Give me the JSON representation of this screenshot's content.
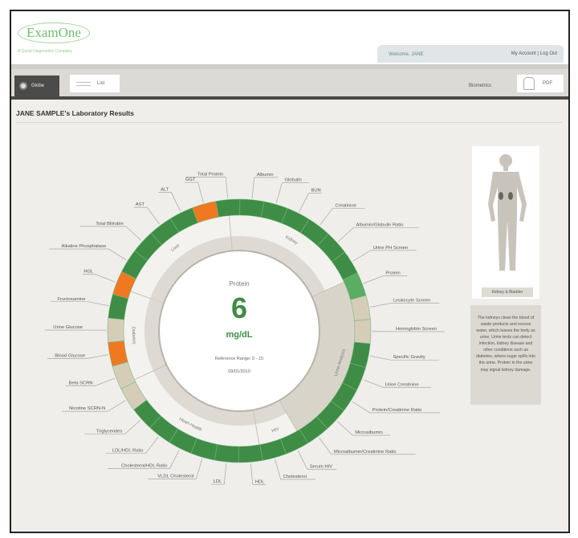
{
  "header": {
    "logo": "ExamOne",
    "tagline": "A Quest Diagnostics Company",
    "welcome": "Welcome, JANE",
    "account": "My Account  |  Log Out"
  },
  "toolbar": {
    "globe_label": "Globe",
    "list_label": "List",
    "biometrics_label": "Biometrics",
    "pdf_label": "PDF"
  },
  "page_title": "JANE SAMPLE's Laboratory Results",
  "center": {
    "test": "Protein",
    "value": "6",
    "unit": "mg/dL",
    "reference": "Reference Range: 0 - 15",
    "date": "09/01/2010"
  },
  "colors": {
    "normal": "#3e8c45",
    "selected": "#5aad62",
    "abnormal": "#f07820",
    "not_tested": "#d6cdb8"
  },
  "categories": [
    {
      "label": "Liver",
      "from": -70,
      "to": -5
    },
    {
      "label": "Kidney",
      "from": -5,
      "to": 65
    },
    {
      "label": "Urine Analysis",
      "from": 65,
      "to": 150
    },
    {
      "label": "HIV",
      "from": 150,
      "to": 170
    },
    {
      "label": "Heart Health",
      "from": 170,
      "to": 245
    },
    {
      "label": "Diabetes",
      "from": 245,
      "to": 290
    }
  ],
  "selected_category": "Urine Analysis",
  "tests": [
    {
      "label": "Total Protein",
      "status": "normal"
    },
    {
      "label": "Albumin",
      "status": "normal"
    },
    {
      "label": "Globulin",
      "status": "normal"
    },
    {
      "label": "BUN",
      "status": "normal"
    },
    {
      "label": "Creatinine",
      "status": "normal"
    },
    {
      "label": "Albumin/Globulin Ratio",
      "status": "normal"
    },
    {
      "label": "Urine PH Screen",
      "status": "normal"
    },
    {
      "label": "Protein",
      "status": "selected"
    },
    {
      "label": "Leukocyte Screen",
      "status": "not_tested"
    },
    {
      "label": "Hemoglobin Screen",
      "status": "not_tested"
    },
    {
      "label": "Specific Gravity",
      "status": "normal"
    },
    {
      "label": "Urine Creatinine",
      "status": "normal"
    },
    {
      "label": "Protein/Creatinine Ratio",
      "status": "normal"
    },
    {
      "label": "Microalbumin",
      "status": "normal"
    },
    {
      "label": "Microalbumin/Creatinine Ratio",
      "status": "normal"
    },
    {
      "label": "Serum HIV",
      "status": "normal"
    },
    {
      "label": "Cholesterol",
      "status": "normal"
    },
    {
      "label": "HDL",
      "status": "normal"
    },
    {
      "label": "LDL",
      "status": "normal"
    },
    {
      "label": "VLDL Cholesterol",
      "status": "normal"
    },
    {
      "label": "Cholesterol/HDL Ratio",
      "status": "normal"
    },
    {
      "label": "LDL/HDL Ratio",
      "status": "normal"
    },
    {
      "label": "Triglycerides",
      "status": "normal"
    },
    {
      "label": "Nicotine SCRN-N",
      "status": "not_tested"
    },
    {
      "label": "Beta SCRN",
      "status": "not_tested"
    },
    {
      "label": "Blood Glucose",
      "status": "abnormal"
    },
    {
      "label": "Urine Glucose",
      "status": "not_tested"
    },
    {
      "label": "Fructosamine",
      "status": "normal"
    },
    {
      "label": "HGL",
      "status": "abnormal"
    },
    {
      "label": "Alkaline Phosphatase",
      "status": "normal"
    },
    {
      "label": "Total Bilirubin",
      "status": "normal"
    },
    {
      "label": "AST",
      "status": "normal"
    },
    {
      "label": "ALT",
      "status": "normal"
    },
    {
      "label": "GGT",
      "status": "abnormal"
    }
  ],
  "side": {
    "organ_button": "Kidney & Bladder",
    "description": "The kidneys clean the blood of waste products and excess water, which leaves the body as urine. Urine tests can detect infection, kidney disease and other conditions such as diabetes, where sugar spills into the urine. Protein in the urine may signal kidney damage."
  }
}
